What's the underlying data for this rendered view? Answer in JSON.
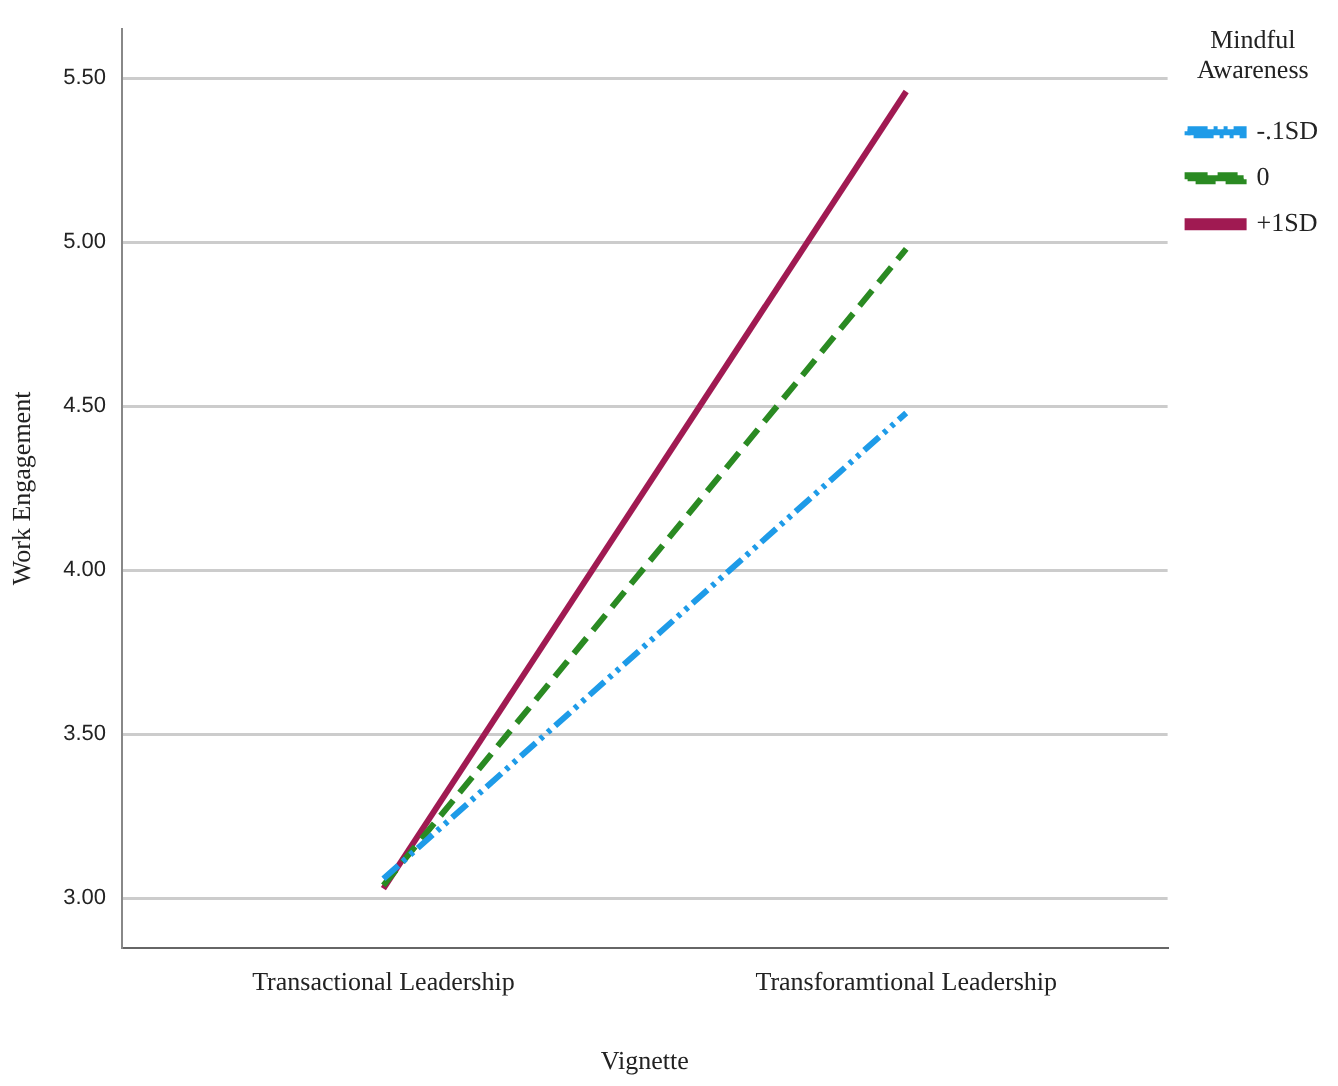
{
  "chart_data": {
    "type": "line",
    "xlabel": "Vignette",
    "ylabel": "Work Engagement",
    "legend_title": "Mindful Awareness",
    "categories": [
      "Transactional Leadership",
      "Transforamtional Leadership"
    ],
    "series": [
      {
        "name": "-.1SD",
        "color": "#1e9be8",
        "values": [
          3.06,
          4.48
        ],
        "line_style": "dashdotdot"
      },
      {
        "name": "0",
        "color": "#2a8a22",
        "values": [
          3.04,
          4.98
        ],
        "line_style": "dashed"
      },
      {
        "name": "+1SD",
        "color": "#a01a52",
        "values": [
          3.03,
          5.46
        ],
        "line_style": "solid"
      }
    ],
    "ylim": [
      2.85,
      5.65
    ],
    "yticks": [
      {
        "value": 3,
        "label": "3.00"
      },
      {
        "value": 3.5,
        "label": "3.50"
      },
      {
        "value": 4,
        "label": "4.00"
      },
      {
        "value": 4.5,
        "label": "4.50"
      },
      {
        "value": 5,
        "label": "5.00"
      },
      {
        "value": 5.5,
        "label": "5.50"
      }
    ],
    "grid": "y",
    "legend": "top right",
    "marker": "none"
  }
}
